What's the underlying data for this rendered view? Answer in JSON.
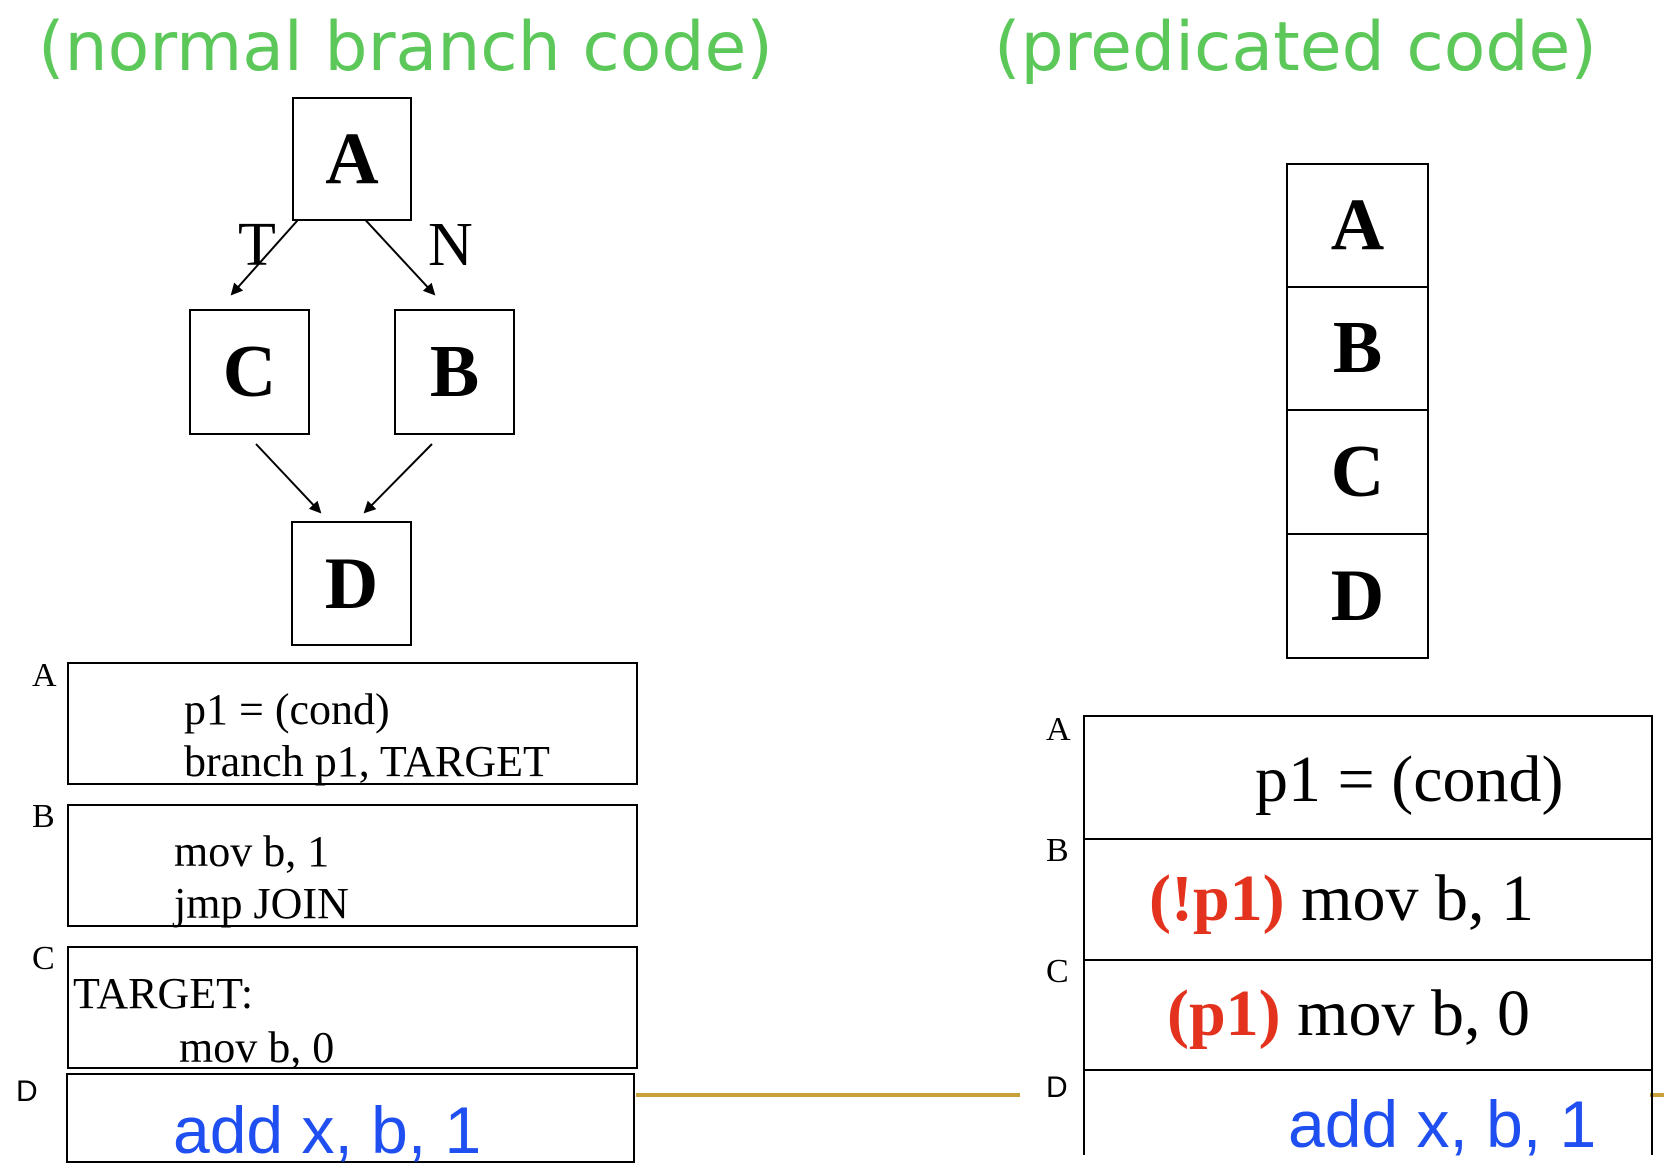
{
  "titles": {
    "left": "(normal branch code)",
    "right": "(predicated code)"
  },
  "cfg": {
    "nodes": {
      "a": "A",
      "b": "B",
      "c": "C",
      "d": "D"
    },
    "edge_labels": {
      "taken": "T",
      "not_taken": "N"
    }
  },
  "left_code": {
    "a": {
      "label": "A",
      "lines": [
        "p1 = (cond)",
        "branch p1, TARGET"
      ]
    },
    "b": {
      "label": "B",
      "lines": [
        "mov b, 1",
        "jmp JOIN"
      ]
    },
    "c": {
      "label": "C",
      "lines": [
        "TARGET:",
        "mov b, 0"
      ]
    },
    "d": {
      "label": "D",
      "code": "add   x, b, 1"
    }
  },
  "right_stack": [
    "A",
    "B",
    "C",
    "D"
  ],
  "right_code": {
    "a": {
      "label": "A",
      "code": "p1 = (cond)"
    },
    "b": {
      "label": "B",
      "pred": "(!p1)",
      "code": " mov  b, 1"
    },
    "c": {
      "label": "C",
      "pred": "(p1)",
      "code": " mov  b, 0"
    },
    "d": {
      "label": "D",
      "code": "add   x, b, 1"
    }
  },
  "colors": {
    "title": "#5cc85a",
    "predicate": "#e3321d",
    "blue_code": "#1f4ff0",
    "connector": "#c9a03a"
  }
}
